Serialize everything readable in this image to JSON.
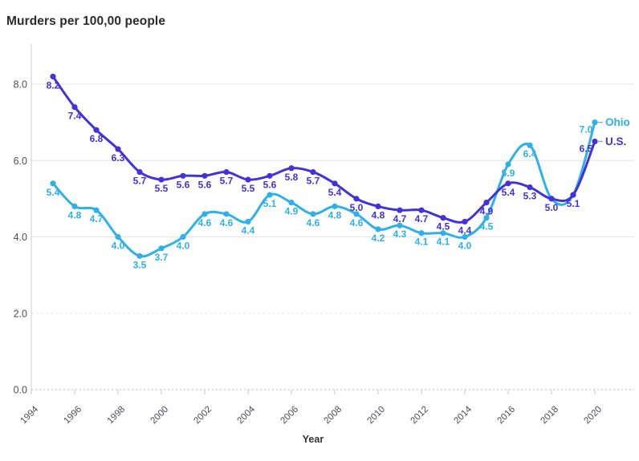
{
  "chart_data": {
    "type": "line",
    "title": "Murders per 100,00 people",
    "xlabel": "Year",
    "ylabel": "",
    "x": [
      1995,
      1996,
      1997,
      1998,
      1999,
      2000,
      2001,
      2002,
      2003,
      2004,
      2005,
      2006,
      2007,
      2008,
      2009,
      2010,
      2011,
      2012,
      2013,
      2014,
      2015,
      2016,
      2017,
      2018,
      2019,
      2020
    ],
    "x_ticks": [
      "1994",
      "1996",
      "1998",
      "2000",
      "2002",
      "2004",
      "2006",
      "2008",
      "2010",
      "2012",
      "2014",
      "2016",
      "2018",
      "2020"
    ],
    "y_ticks": [
      "0.0",
      "2.0",
      "4.0",
      "6.0",
      "8.0"
    ],
    "xlim": [
      1994,
      2020
    ],
    "ylim": [
      0,
      8
    ],
    "grid": "horizontal",
    "legend_position": "right-end",
    "series": [
      {
        "name": "Ohio",
        "color": "#2eb1e9",
        "values": [
          5.4,
          4.8,
          4.7,
          4.0,
          3.5,
          3.7,
          4.0,
          4.6,
          4.6,
          4.4,
          5.1,
          4.9,
          4.6,
          4.8,
          4.6,
          4.2,
          4.3,
          4.1,
          4.1,
          4.0,
          4.5,
          5.9,
          6.4,
          5.0,
          5.1,
          7.0
        ],
        "hidden_label_years": [
          2018,
          2019
        ]
      },
      {
        "name": "U.S.",
        "color": "#4331d9",
        "values": [
          8.2,
          7.4,
          6.8,
          6.3,
          5.7,
          5.5,
          5.6,
          5.6,
          5.7,
          5.5,
          5.6,
          5.8,
          5.7,
          5.4,
          5.0,
          4.8,
          4.7,
          4.7,
          4.5,
          4.4,
          4.9,
          5.4,
          5.3,
          5.0,
          5.1,
          6.5
        ],
        "hidden_label_years": []
      }
    ],
    "colors": {
      "title": "#2b2b2b",
      "axis_title": "#333333",
      "tick_label": "#4a4a55",
      "axis_line": "#d6d6d6",
      "grid_line": "#e9e9e9",
      "baseline_dots": "#dcdcdc",
      "legend_dash": "#a8a8a8"
    }
  }
}
